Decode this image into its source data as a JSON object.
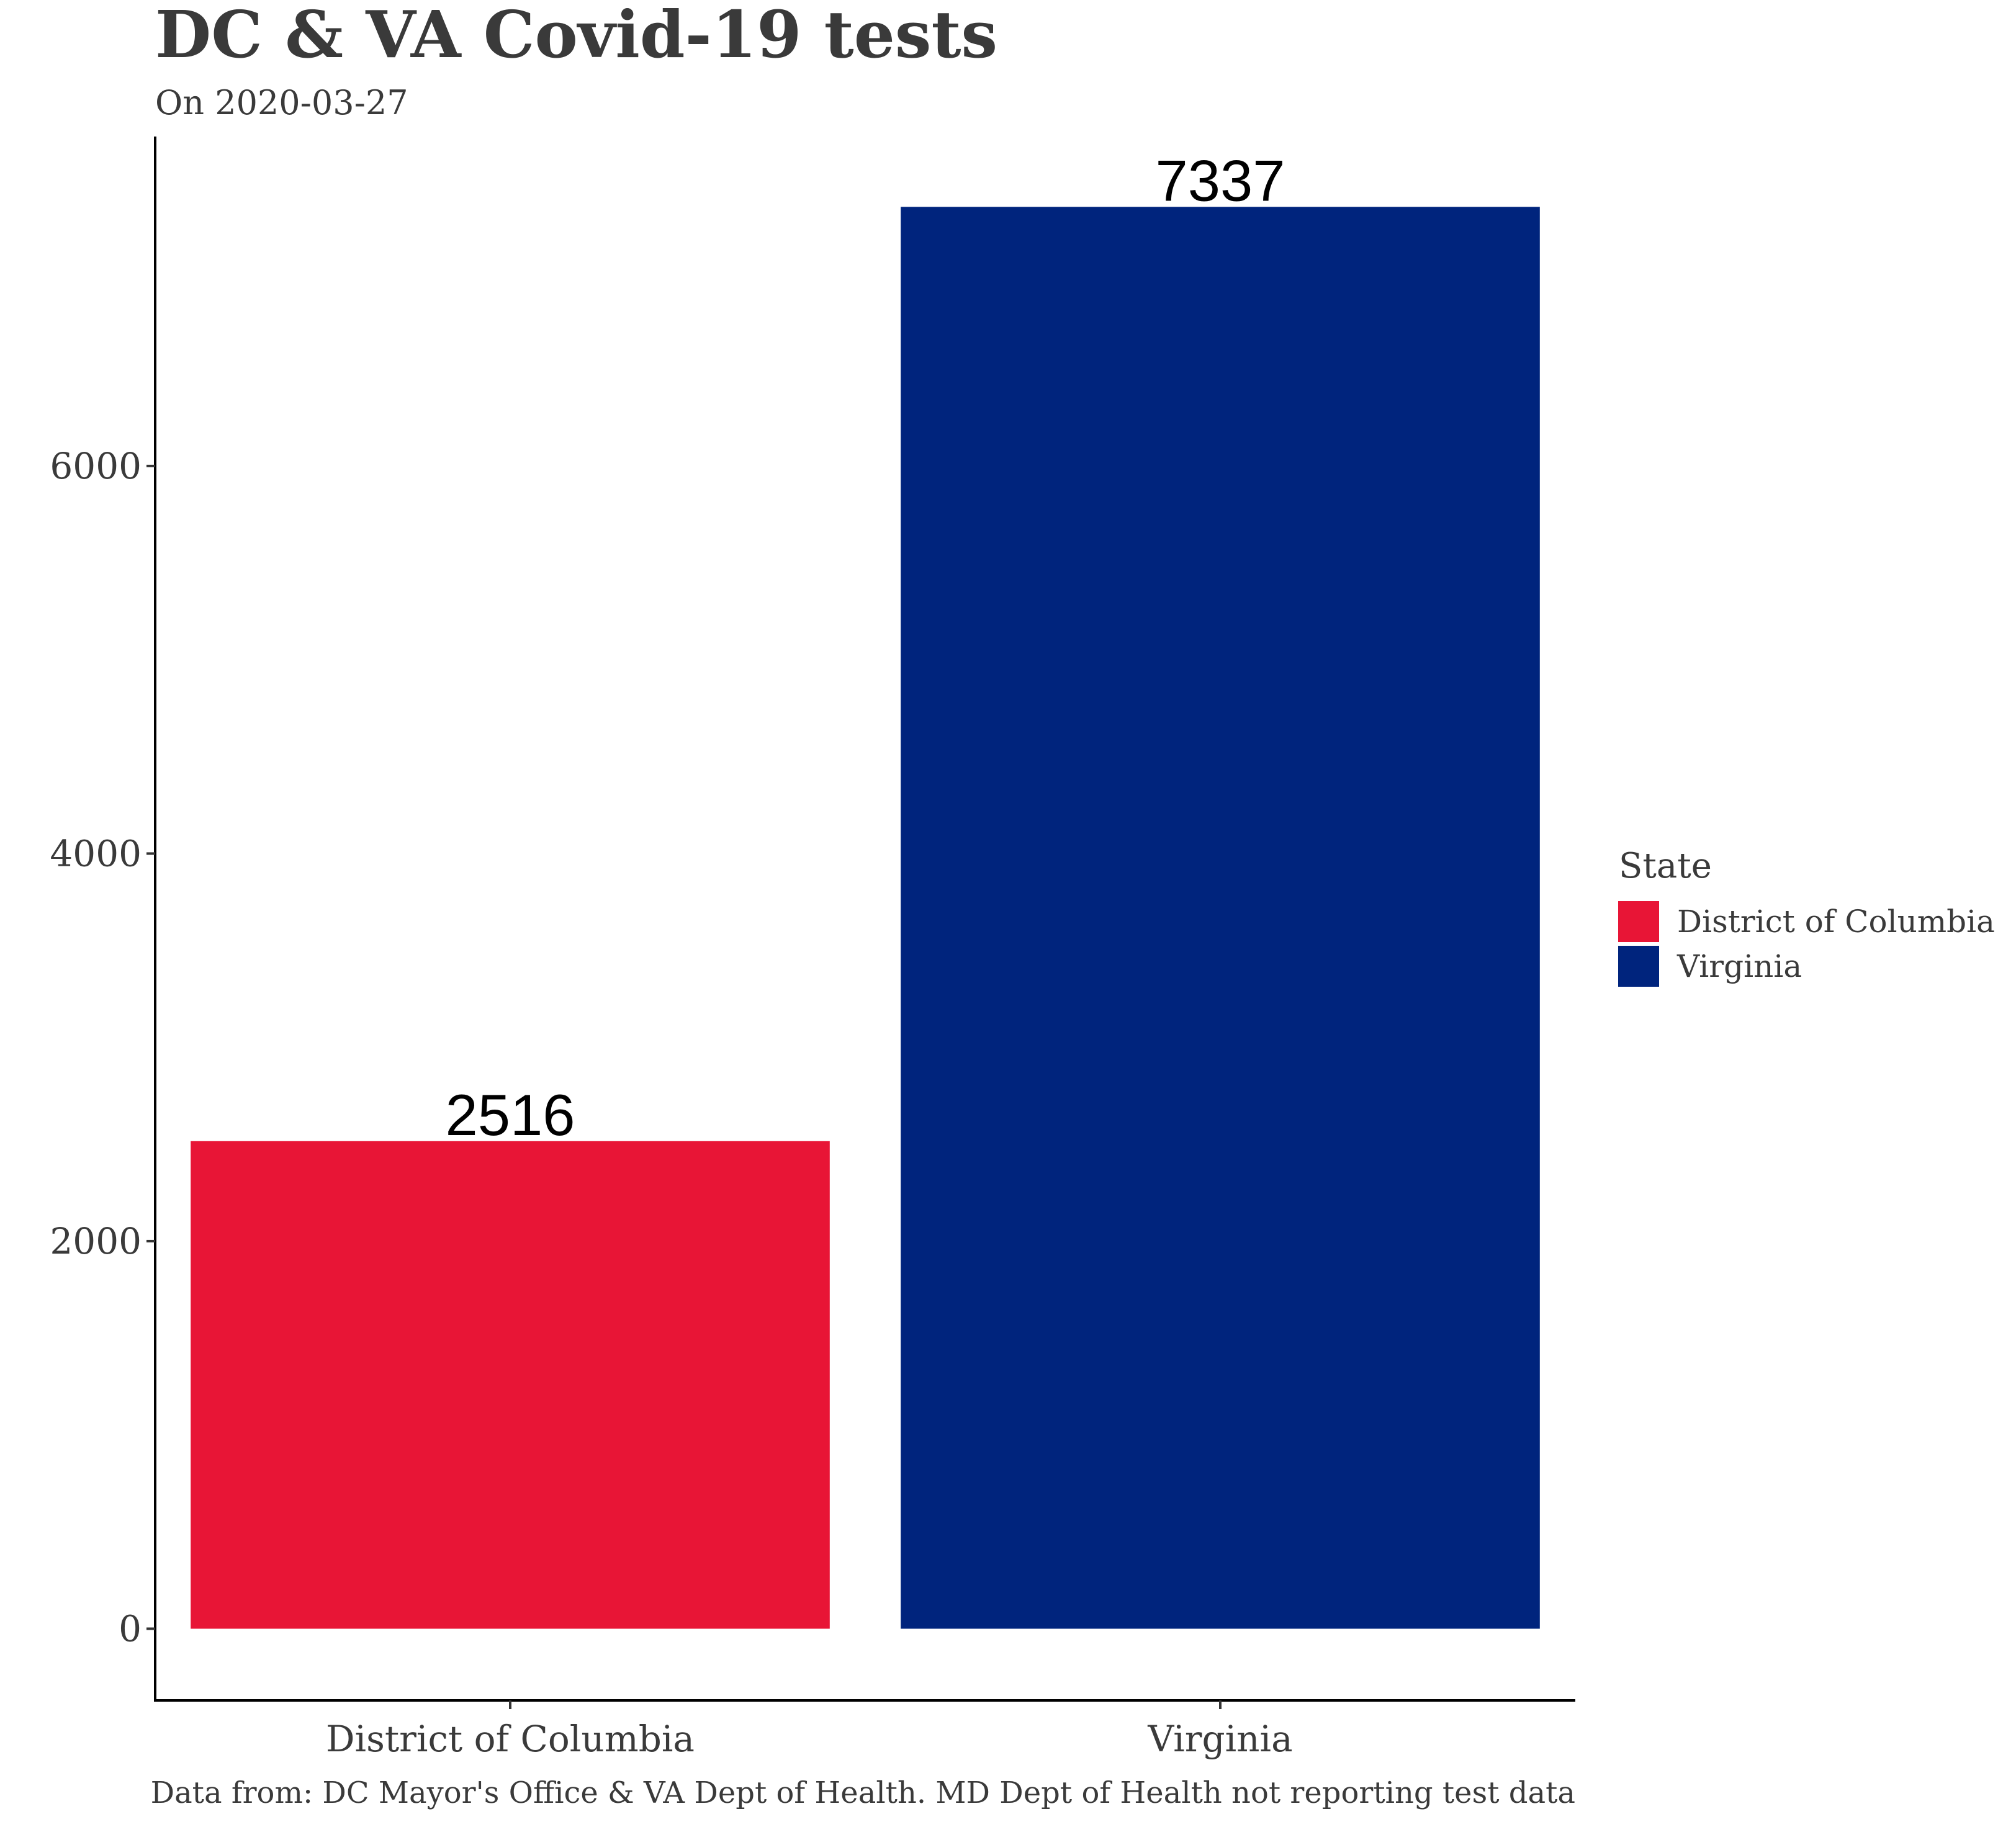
{
  "chart_data": {
    "type": "bar",
    "title": "DC & VA Covid-19 tests",
    "subtitle": "On 2020-03-27",
    "caption": "Data from: DC Mayor's Office & VA Dept of Health. MD Dept of Health not reporting test data",
    "categories": [
      "District of Columbia",
      "Virginia"
    ],
    "values": [
      2516,
      7337
    ],
    "data_labels": [
      "2516",
      "7337"
    ],
    "colors": [
      "#E81536",
      "#00247D"
    ],
    "y_ticks": [
      0,
      2000,
      4000,
      6000
    ],
    "y_tick_labels": [
      "0",
      "2000",
      "4000",
      "6000"
    ],
    "ylim": [
      -370,
      7700
    ],
    "xlabel": "",
    "ylabel": "",
    "grid": false,
    "legend": {
      "title": "State",
      "position": "right",
      "entries": [
        {
          "label": "District of Columbia",
          "color": "#E81536"
        },
        {
          "label": "Virginia",
          "color": "#00247D"
        }
      ]
    }
  }
}
